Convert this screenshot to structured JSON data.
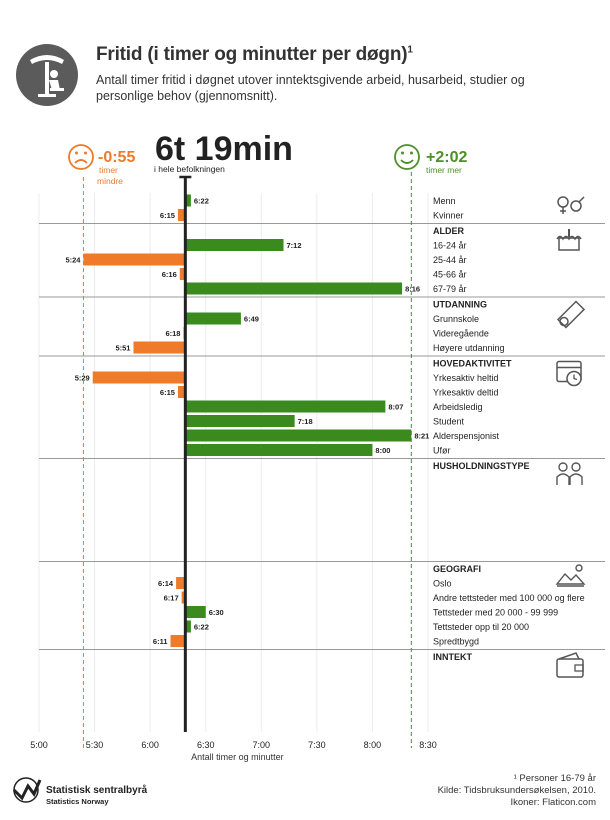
{
  "header": {
    "title": "Fritid (i timer og minutter per døgn)",
    "title_sup": "1",
    "subtitle": "Antall timer fritid i døgnet utover inntektsgivende arbeid, husarbeid, studier og personlige behov (gjennomsnitt)."
  },
  "callouts": {
    "average_value": "6t 19min",
    "average_label": "i hele befolkningen",
    "less_value": "-0:55",
    "less_label_1": "timer",
    "less_label_2": "mindre",
    "more_value": "+2:02",
    "more_label": "timer mer"
  },
  "chart_data": {
    "type": "bar",
    "orientation": "horizontal",
    "value_unit": "minutes per day",
    "reference_line_minutes": 379,
    "reference_line_label": "6t 19min",
    "xlim_minutes": [
      300,
      510
    ],
    "x_ticks": [
      {
        "minutes": 300,
        "label": "5:00"
      },
      {
        "minutes": 330,
        "label": "5:30"
      },
      {
        "minutes": 360,
        "label": "6:00"
      },
      {
        "minutes": 390,
        "label": "6:30"
      },
      {
        "minutes": 420,
        "label": "7:00"
      },
      {
        "minutes": 450,
        "label": "7:30"
      },
      {
        "minutes": 480,
        "label": "8:00"
      },
      {
        "minutes": 510,
        "label": "8:30"
      }
    ],
    "xlabel": "Antall timer og minutter",
    "guide_lines_minutes": [
      324,
      501
    ],
    "colors": {
      "above": "#3a8a1e",
      "below": "#ee7a2a",
      "reference": "#222222",
      "less": "#ee7a2a",
      "more": "#4e8f2a"
    },
    "groups": [
      {
        "heading": "",
        "icon": "gender-icon",
        "rows": [
          {
            "label": "Menn",
            "value_label": "6:22",
            "minutes": 382
          },
          {
            "label": "Kvinner",
            "value_label": "6:15",
            "minutes": 375
          }
        ]
      },
      {
        "heading": "ALDER",
        "icon": "birthday-cake-icon",
        "rows": [
          {
            "label": "16-24 år",
            "value_label": "7:12",
            "minutes": 432
          },
          {
            "label": "25-44 år",
            "value_label": "5:24",
            "minutes": 324
          },
          {
            "label": "45-66 år",
            "value_label": "6:16",
            "minutes": 376
          },
          {
            "label": "67-79 år",
            "value_label": "8:16",
            "minutes": 496
          }
        ]
      },
      {
        "heading": "UTDANNING",
        "icon": "diploma-icon",
        "rows": [
          {
            "label": "Grunnskole",
            "value_label": "6:49",
            "minutes": 409
          },
          {
            "label": "Videregående",
            "value_label": "6:18",
            "minutes": 378
          },
          {
            "label": "Høyere utdanning",
            "value_label": "5:51",
            "minutes": 351
          }
        ]
      },
      {
        "heading": "HOVEDAKTIVITET",
        "icon": "calendar-clock-icon",
        "rows": [
          {
            "label": "Yrkesaktiv heltid",
            "value_label": "5:29",
            "minutes": 329
          },
          {
            "label": "Yrkesaktiv deltid",
            "value_label": "6:15",
            "minutes": 375
          },
          {
            "label": "Arbeidsledig",
            "value_label": "8:07",
            "minutes": 487
          },
          {
            "label": "Student",
            "value_label": "7:18",
            "minutes": 438
          },
          {
            "label": "Alderspensjonist",
            "value_label": "8:21",
            "minutes": 501
          },
          {
            "label": "Ufør",
            "value_label": "8:00",
            "minutes": 480
          }
        ]
      },
      {
        "heading": "HUSHOLDNINGSTYPE",
        "icon": "family-icon",
        "rows": []
      },
      {
        "heading": "GEOGRAFI",
        "icon": "landscape-icon",
        "rows": [
          {
            "label": "Oslo",
            "value_label": "6:14",
            "minutes": 374
          },
          {
            "label": "Andre tettsteder med 100 000 og flere",
            "value_label": "6:17",
            "minutes": 377
          },
          {
            "label": "Tettsteder med 20 000 - 99 999",
            "value_label": "6:30",
            "minutes": 390
          },
          {
            "label": "Tettsteder opp til 20 000",
            "value_label": "6:22",
            "minutes": 382
          },
          {
            "label": "Spredtbygd",
            "value_label": "6:11",
            "minutes": 371
          }
        ]
      },
      {
        "heading": "INNTEKT",
        "icon": "wallet-icon",
        "rows": []
      }
    ]
  },
  "footer": {
    "logo_name": "Statistisk sentralbyrå",
    "logo_name_en": "Statistics Norway",
    "note": "¹ Personer 16-79 år",
    "source": "Kilde: Tidsbruksundersøkelsen, 2010.",
    "icons_credit": "Ikoner: Flaticon.com"
  }
}
